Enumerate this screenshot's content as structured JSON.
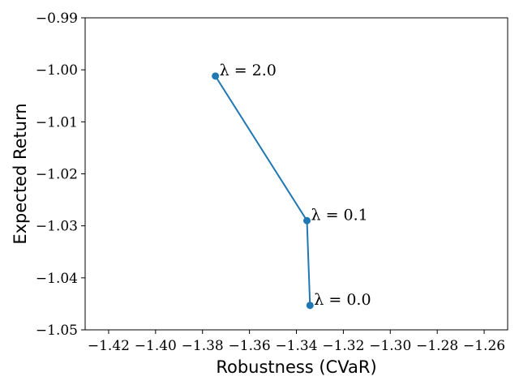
{
  "chart_data": {
    "type": "line",
    "title": "",
    "xlabel": "Robustness (CVaR)",
    "ylabel": "Expected Return",
    "xlim": [
      -1.43,
      -1.25
    ],
    "ylim": [
      -1.05,
      -0.99
    ],
    "x_ticks": [
      -1.42,
      -1.4,
      -1.38,
      -1.36,
      -1.34,
      -1.32,
      -1.3,
      -1.28,
      -1.26
    ],
    "x_tick_labels": [
      "−1.42",
      "−1.40",
      "−1.38",
      "−1.36",
      "−1.34",
      "−1.32",
      "−1.30",
      "−1.28",
      "−1.26"
    ],
    "y_ticks": [
      -0.99,
      -1.0,
      -1.01,
      -1.02,
      -1.03,
      -1.04,
      -1.05
    ],
    "y_tick_labels": [
      "−0.99",
      "−1.00",
      "−1.01",
      "−1.02",
      "−1.03",
      "−1.04",
      "−1.05"
    ],
    "grid": false,
    "series": [
      {
        "color": "#1f77b4",
        "marker": "circle",
        "points": [
          {
            "x": -1.3745,
            "y": -1.0012,
            "label": "λ = 2.0"
          },
          {
            "x": -1.3355,
            "y": -1.029,
            "label": "λ = 0.1"
          },
          {
            "x": -1.3342,
            "y": -1.0453,
            "label": "λ = 0.0"
          }
        ]
      }
    ]
  }
}
